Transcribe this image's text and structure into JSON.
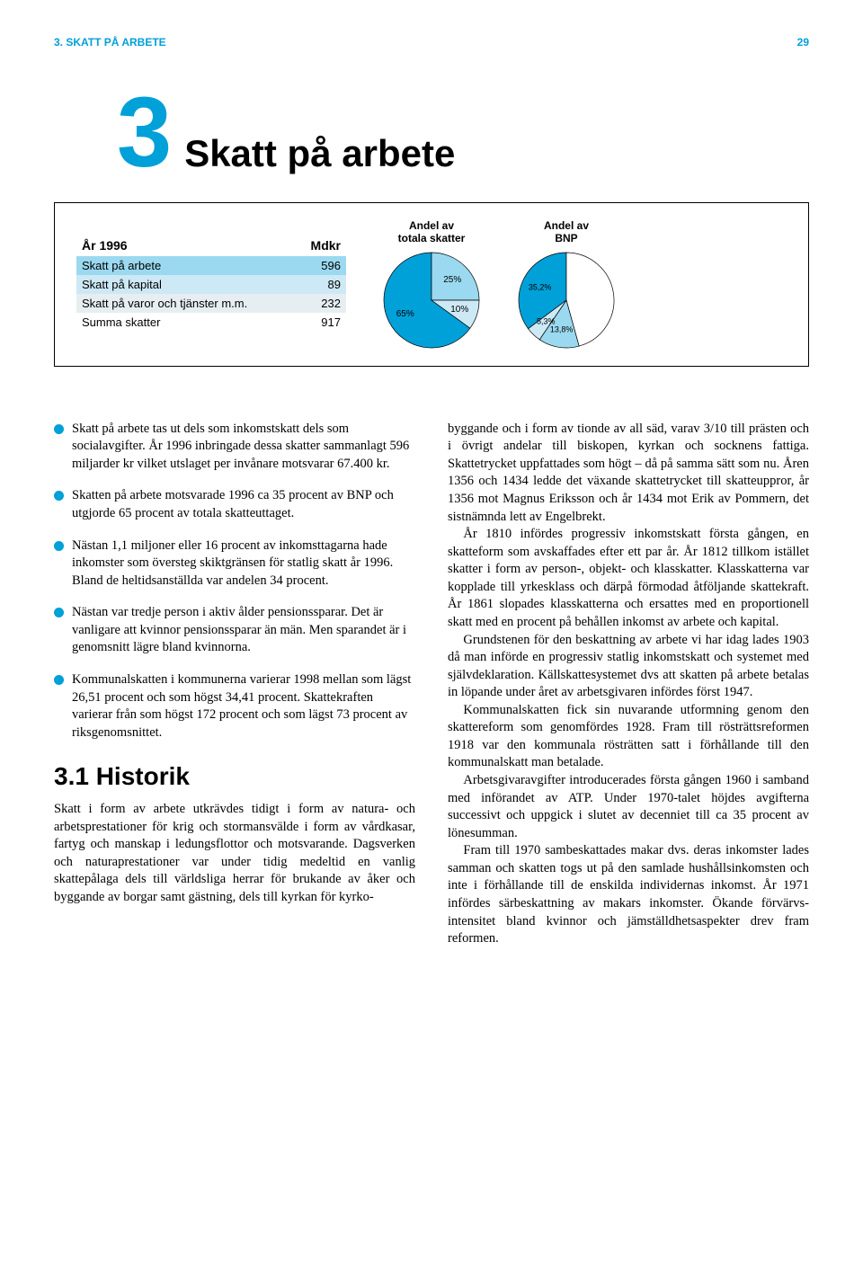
{
  "header": {
    "running_head": "3. SKATT PÅ ARBETE",
    "page_number": "29"
  },
  "chapter": {
    "number": "3",
    "title": "Skatt på arbete"
  },
  "info_table": {
    "year_label": "År 1996",
    "amount_label": "Mdkr",
    "rows": [
      {
        "label": "Skatt på arbete",
        "value": "596",
        "bg": "#9bd9f0"
      },
      {
        "label": "Skatt på kapital",
        "value": "89",
        "bg": "#cde9f5"
      },
      {
        "label": "Skatt på varor och tjänster m.m.",
        "value": "232",
        "bg": "#e6eef2"
      },
      {
        "label": "Summa skatter",
        "value": "917",
        "bg": "#ffffff"
      }
    ]
  },
  "pie1": {
    "title_line1": "Andel av",
    "title_line2": "totala skatter",
    "size": 110,
    "slices": [
      {
        "value": 65,
        "color": "#00a0d8",
        "label": "65%"
      },
      {
        "value": 25,
        "color": "#9bd9f0",
        "label": "25%"
      },
      {
        "value": 10,
        "color": "#cde9f5",
        "label": "10%"
      }
    ],
    "border": "#000000",
    "label_fontsize": 10
  },
  "pie2": {
    "title_line1": "Andel av",
    "title_line2": "BNP",
    "size": 110,
    "slices": [
      {
        "value": 35.2,
        "color": "#00a0d8",
        "label": "35,2%"
      },
      {
        "value": 45.7,
        "color": "#ffffff",
        "label": ""
      },
      {
        "value": 13.8,
        "color": "#9bd9f0",
        "label": "13,8%"
      },
      {
        "value": 5.3,
        "color": "#cde9f5",
        "label": "5,3%"
      }
    ],
    "border": "#000000",
    "label_fontsize": 9
  },
  "left_column": {
    "bullets": [
      "Skatt på arbete tas ut dels som inkomstskatt dels som socialavgifter. År 1996 inbringade dessa skatter sammanlagt 596 miljarder kr vilket utslaget per invånare motsvarar 67.400 kr.",
      "Skatten på arbete motsvarade 1996 ca 35 procent av BNP och utgjorde 65 procent av totala skatte­uttaget.",
      "Nästan 1,1 miljoner eller 16 procent av inkomst­tagarna hade inkomster som översteg skiktgränsen för statlig skatt år 1996. Bland de heltidsanställda var andelen 34 procent.",
      "Nästan var tredje person i aktiv ålder pensions­sparar. Det är vanligare att kvinnor pensionssparar än män. Men sparandet är i genomsnitt lägre bland kvinnorna.",
      "Kommunalskatten i kommunerna varierar 1998 mellan som lägst 26,51 procent och som högst 34,41 procent. Skattekraften varierar från som högst 172 procent och som lägst 73 procent av riksgenomsnittet."
    ],
    "section_heading": "3.1 Historik",
    "historik_para": "Skatt i form av arbete utkrävdes tidigt i form av na­tura- och arbetsprestationer för krig och stormansvälde i form av vårdkasar, fartyg och manskap i ledungsflottor och motsvarande. Dagsverken och naturaprestationer var under tidig medeltid en vanlig skattepålaga dels till världsliga herrar för brukande av åker och byggande av borgar samt gästning, dels till kyrkan för kyrko-"
  },
  "right_column": {
    "paragraphs": [
      "byggande och i form av tionde av all säd, varav 3/10 till prästen och i övrigt andelar till biskopen, kyrkan och socknens fattiga. Skattetrycket uppfattades som högt – då på samma sätt som nu. Åren 1356 och 1434 ledde det växande skattetrycket till skatteuppror, år 1356 mot Magnus Eriksson och år 1434 mot Erik av Pommern, det sistnämnda lett av Engelbrekt.",
      "År 1810 infördes progressiv inkomstskatt första gången, en skatteform som avskaffades efter ett par år. År 1812 tillkom istället skatter i form av person-, ob­jekt- och klasskatter. Klasskatterna var kopplade till yrkesklass och därpå förmodad åtföljande skattekraft. År 1861 slopades klasskatterna och ersattes med en proportionell skatt med en procent på behållen inkomst av arbete och kapital.",
      "Grundstenen för den beskattning av arbete vi har idag lades 1903 då man införde en progressiv statlig inkomstskatt och systemet med självdeklaration. Källskattesystemet dvs att skatten på arbete betalas in löpande under året av arbetsgivaren infördes först 1947.",
      "Kommunalskatten fick sin nuvarande utformning genom den skattereform som genomfördes 1928. Fram till rösträttsreformen 1918 var den kommunala röst­rätten satt i förhållande till den kommunalskatt man betalade.",
      "Arbetsgivaravgifter introducerades första gången 1960 i samband med införandet av ATP. Under 1970-talet höjdes avgifterna successivt och uppgick i slutet av decenniet till ca 35 procent av lönesumman.",
      "Fram till 1970 sambeskattades makar dvs. deras inkomster lades samman och skatten togs ut på den sam­lade hushållsinkomsten och inte i förhållande till de enskilda individernas inkomst. År 1971 infördes sär­beskattning av makars inkomster. Ökande förvärvs­intensitet bland kvinnor och jämställdhetsaspekter drev fram reformen."
    ]
  }
}
